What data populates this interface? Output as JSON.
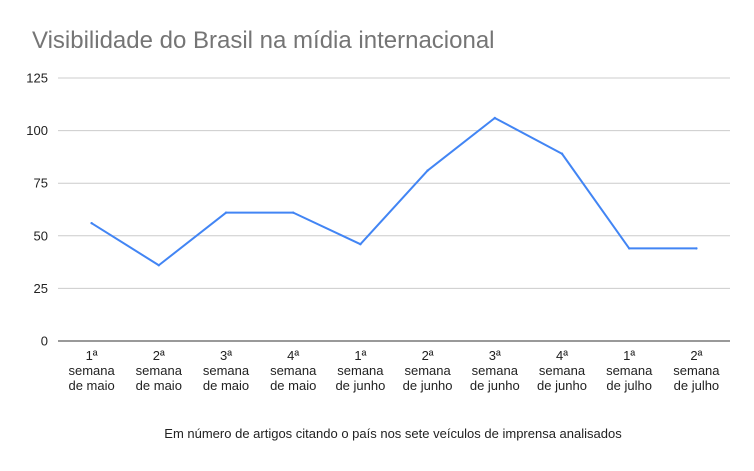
{
  "chart_data": {
    "type": "line",
    "title": "Visibilidade do Brasil na mídia internacional",
    "xlabel": "Em número de artigos citando o país nos sete veículos de imprensa analisados",
    "ylabel": "",
    "ylim": [
      0,
      125
    ],
    "yticks": [
      "0",
      "25",
      "50",
      "75",
      "100",
      "125"
    ],
    "categories": [
      [
        "1ª",
        "semana",
        "de maio"
      ],
      [
        "2ª",
        "semana",
        "de maio"
      ],
      [
        "3ª",
        "semana",
        "de maio"
      ],
      [
        "4ª",
        "semana",
        "de maio"
      ],
      [
        "1ª",
        "semana",
        "de junho"
      ],
      [
        "2ª",
        "semana",
        "de junho"
      ],
      [
        "3ª",
        "semana",
        "de junho"
      ],
      [
        "4ª",
        "semana",
        "de junho"
      ],
      [
        "1ª",
        "semana",
        "de julho"
      ],
      [
        "2ª",
        "semana",
        "de julho"
      ]
    ],
    "series": [
      {
        "values": [
          56,
          36,
          61,
          61,
          46,
          81,
          106,
          89,
          44,
          44
        ],
        "color": "#4285f4"
      }
    ],
    "grid": true,
    "legend": "none",
    "colors": {
      "title": "#757575",
      "axis_text": "#222222",
      "xlabel": "#222222",
      "gridline": "#cccccc",
      "baseline": "#333333",
      "line": "#4285f4"
    }
  }
}
